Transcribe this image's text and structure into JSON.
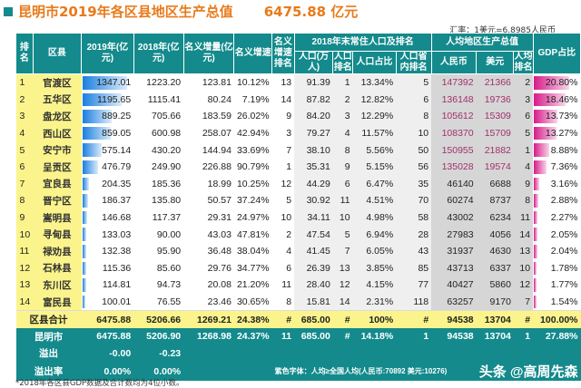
{
  "title": "昆明市2019年各区县地区生产总值",
  "title_total": "6475.88 亿元",
  "exchange_rate": "汇率：1美元=6.8985人民币",
  "headers": {
    "rank": "排名",
    "county": "区县",
    "gdp2019": "2019年(亿元)",
    "gdp2018": "2018年(亿元)",
    "increase": "名义增量(亿元)",
    "growth": "名义增速",
    "growth_rank": "名义增速排名",
    "pop_group": "2018年末常住人口及排名",
    "pop": "人口(万人)",
    "pop_rank": "人口排名",
    "pop_share": "人口占比",
    "pop_prov_rank": "人口省内排名",
    "pc_group": "人均地区生产总值",
    "rmb": "人民币",
    "usd": "美元",
    "pc_rank": "人均排名",
    "gdp_share": "GDP占比"
  },
  "rows": [
    [
      "1",
      "官渡区",
      "1347.01",
      "1223.20",
      "123.81",
      "10.12%",
      "13",
      "91.39",
      "1",
      "13.34%",
      "5",
      "147392",
      "21366",
      "2",
      "20.80%"
    ],
    [
      "2",
      "五华区",
      "1195.65",
      "1115.41",
      "80.24",
      "7.19%",
      "14",
      "87.82",
      "2",
      "12.82%",
      "6",
      "136148",
      "19736",
      "3",
      "18.46%"
    ],
    [
      "3",
      "盘龙区",
      "889.25",
      "705.66",
      "183.59",
      "26.02%",
      "9",
      "84.20",
      "3",
      "12.29%",
      "8",
      "105612",
      "15309",
      "6",
      "13.73%"
    ],
    [
      "4",
      "西山区",
      "859.05",
      "600.98",
      "258.07",
      "42.94%",
      "3",
      "79.27",
      "4",
      "11.57%",
      "10",
      "108370",
      "15709",
      "5",
      "13.27%"
    ],
    [
      "5",
      "安宁市",
      "575.14",
      "430.20",
      "144.94",
      "33.69%",
      "7",
      "38.10",
      "8",
      "5.56%",
      "50",
      "150955",
      "21882",
      "1",
      "8.88%"
    ],
    [
      "6",
      "呈贡区",
      "476.79",
      "249.90",
      "226.88",
      "90.79%",
      "1",
      "35.31",
      "9",
      "5.15%",
      "56",
      "135028",
      "19574",
      "4",
      "7.36%"
    ],
    [
      "7",
      "宜良县",
      "204.35",
      "185.36",
      "18.99",
      "10.25%",
      "12",
      "44.29",
      "6",
      "6.47%",
      "35",
      "46140",
      "6688",
      "9",
      "3.16%"
    ],
    [
      "8",
      "晋宁区",
      "186.37",
      "135.80",
      "50.57",
      "37.24%",
      "5",
      "30.92",
      "11",
      "4.51%",
      "70",
      "60274",
      "8737",
      "8",
      "2.88%"
    ],
    [
      "9",
      "嵩明县",
      "146.68",
      "117.37",
      "29.31",
      "24.97%",
      "10",
      "34.11",
      "10",
      "4.98%",
      "58",
      "43002",
      "6234",
      "11",
      "2.27%"
    ],
    [
      "10",
      "寻甸县",
      "133.03",
      "90.00",
      "43.03",
      "47.81%",
      "2",
      "47.54",
      "5",
      "6.94%",
      "28",
      "27983",
      "4056",
      "14",
      "2.05%"
    ],
    [
      "11",
      "禄劝县",
      "132.38",
      "95.90",
      "36.48",
      "38.04%",
      "4",
      "41.45",
      "7",
      "6.05%",
      "43",
      "31937",
      "4630",
      "13",
      "2.04%"
    ],
    [
      "12",
      "石林县",
      "115.36",
      "85.60",
      "29.76",
      "34.77%",
      "6",
      "26.39",
      "13",
      "3.85%",
      "85",
      "43713",
      "6337",
      "10",
      "1.78%"
    ],
    [
      "13",
      "东川区",
      "114.81",
      "94.73",
      "20.08",
      "21.20%",
      "11",
      "28.40",
      "12",
      "4.15%",
      "77",
      "40427",
      "5860",
      "12",
      "1.77%"
    ],
    [
      "14",
      "富民县",
      "100.01",
      "76.55",
      "23.46",
      "30.65%",
      "8",
      "15.81",
      "14",
      "2.31%",
      "118",
      "63257",
      "9170",
      "7",
      "1.54%"
    ]
  ],
  "purple_rows": 6,
  "sum_row": [
    "区县合计",
    "6475.88",
    "5206.66",
    "1269.21",
    "24.38%",
    "#",
    "685.00",
    "#",
    "100%",
    "#",
    "94538",
    "13704",
    "#",
    "100.00%"
  ],
  "city_row": [
    "昆明市",
    "6475.88",
    "5206.90",
    "1268.98",
    "24.37%",
    "11",
    "685.00",
    "#",
    "14.18%",
    "1",
    "94538",
    "13704",
    "1",
    "27.88%"
  ],
  "overflow_row": [
    "溢出",
    "-0.00",
    "-0.23"
  ],
  "overflow_rate_row": [
    "溢出率",
    "0.00%",
    "0.00%"
  ],
  "purple_note": "紫色字体：人均≥全国人均(人民币:70892 美元:10276)",
  "watermark": "头条 @高周先森",
  "footnote": "*2018年各区县GDP数据及合计数均为4位小数。",
  "colors": {
    "teal": "#148a8c",
    "yellow": "#fbf48c",
    "purple": "#a0306c",
    "orange": "#e87a1a"
  }
}
